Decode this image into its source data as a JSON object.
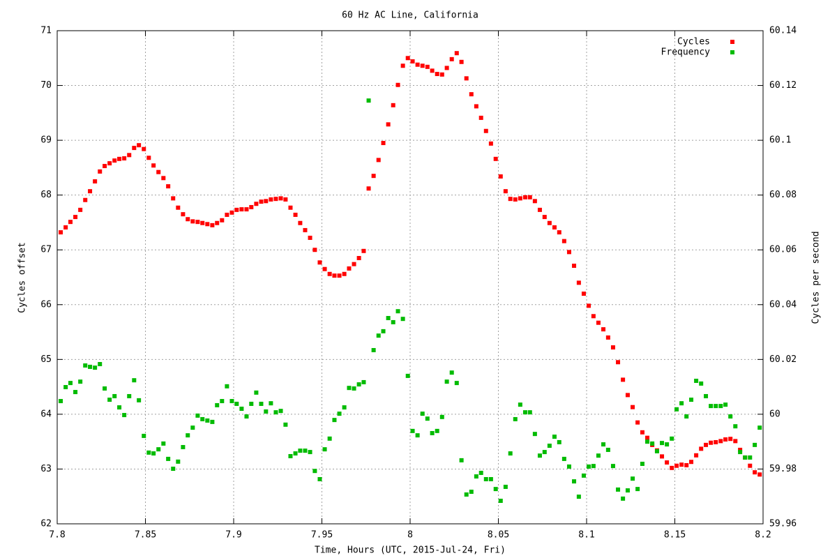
{
  "chart_data": {
    "type": "scatter",
    "title": "60 Hz AC Line, California",
    "x_label": "Time, Hours (UTC, 2015-Jul-24, Fri)",
    "y_label": "Cycles offset",
    "y2_label": "Cycles per second",
    "xlim": [
      7.8,
      8.2
    ],
    "xticks": [
      7.8,
      7.85,
      7.9,
      7.95,
      8,
      8.05,
      8.1,
      8.15,
      8.2
    ],
    "ylim": [
      62,
      71
    ],
    "yticks": [
      62,
      63,
      64,
      65,
      66,
      67,
      68,
      69,
      70,
      71
    ],
    "y2lim": [
      59.96,
      60.14
    ],
    "y2ticks": [
      59.96,
      59.98,
      60,
      60.02,
      60.04,
      60.06,
      60.08,
      60.1,
      60.12,
      60.14
    ],
    "grid": true,
    "legend": "top-right",
    "x": [
      7.802,
      7.8048,
      7.8075,
      7.8103,
      7.8131,
      7.8159,
      7.8186,
      7.8214,
      7.8242,
      7.8269,
      7.8297,
      7.8325,
      7.8352,
      7.838,
      7.8408,
      7.8436,
      7.8463,
      7.8491,
      7.8519,
      7.8546,
      7.8574,
      7.8602,
      7.8629,
      7.8657,
      7.8685,
      7.8713,
      7.874,
      7.8768,
      7.8796,
      7.8823,
      7.8851,
      7.8879,
      7.8906,
      7.8934,
      7.8962,
      7.899,
      7.9017,
      7.9045,
      7.9073,
      7.91,
      7.9128,
      7.9156,
      7.9183,
      7.9211,
      7.9239,
      7.9267,
      7.9294,
      7.9322,
      7.935,
      7.9377,
      7.9405,
      7.9433,
      7.946,
      7.9488,
      7.9516,
      7.9544,
      7.9571,
      7.9599,
      7.9627,
      7.9654,
      7.9682,
      7.971,
      7.9737,
      7.9765,
      7.9793,
      7.9821,
      7.9848,
      7.9876,
      7.9904,
      7.9931,
      7.9959,
      7.9987,
      8.0014,
      8.0042,
      8.007,
      8.0098,
      8.0125,
      8.0153,
      8.0181,
      8.0208,
      8.0236,
      8.0264,
      8.0291,
      8.0319,
      8.0347,
      8.0375,
      8.0402,
      8.043,
      8.0458,
      8.0485,
      8.0513,
      8.0541,
      8.0568,
      8.0596,
      8.0624,
      8.0652,
      8.0679,
      8.0707,
      8.0735,
      8.0762,
      8.079,
      8.0818,
      8.0845,
      8.0873,
      8.0901,
      8.0929,
      8.0956,
      8.0984,
      8.1012,
      8.1039,
      8.1067,
      8.1095,
      8.1122,
      8.115,
      8.1178,
      8.1206,
      8.1233,
      8.1261,
      8.1289,
      8.1316,
      8.1344,
      8.1372,
      8.1399,
      8.1427,
      8.1455,
      8.1483,
      8.151,
      8.1538,
      8.1566,
      8.1593,
      8.1621,
      8.1649,
      8.1676,
      8.1704,
      8.1732,
      8.176,
      8.1787,
      8.1815,
      8.1843,
      8.187,
      8.1898,
      8.1926,
      8.1953,
      8.1981
    ],
    "series": [
      {
        "name": "Cycles",
        "color": "#ff0000",
        "values": [
          67.32,
          67.41,
          67.51,
          67.6,
          67.73,
          67.91,
          68.07,
          68.25,
          68.43,
          68.53,
          68.58,
          68.63,
          68.66,
          68.67,
          68.73,
          68.86,
          68.91,
          68.84,
          68.68,
          68.54,
          68.42,
          68.31,
          68.16,
          67.94,
          67.77,
          67.65,
          67.56,
          67.52,
          67.51,
          67.49,
          67.47,
          67.45,
          67.49,
          67.54,
          67.64,
          67.68,
          67.73,
          67.74,
          67.74,
          67.78,
          67.84,
          67.88,
          67.89,
          67.92,
          67.93,
          67.94,
          67.92,
          67.77,
          67.64,
          67.49,
          67.36,
          67.22,
          67.0,
          66.77,
          66.65,
          66.56,
          66.53,
          66.53,
          66.56,
          66.66,
          66.74,
          66.85,
          66.98,
          68.12,
          68.35,
          68.64,
          68.95,
          69.29,
          69.64,
          70.01,
          70.36,
          70.5,
          70.44,
          70.38,
          70.36,
          70.34,
          70.27,
          70.21,
          70.2,
          70.32,
          70.48,
          70.59,
          70.43,
          70.13,
          69.84,
          69.62,
          69.41,
          69.17,
          68.94,
          68.66,
          68.34,
          68.07,
          67.93,
          67.92,
          67.94,
          67.96,
          67.96,
          67.89,
          67.73,
          67.6,
          67.49,
          67.41,
          67.32,
          67.16,
          66.96,
          66.71,
          66.4,
          66.2,
          65.98,
          65.79,
          65.67,
          65.55,
          65.4,
          65.22,
          64.95,
          64.63,
          64.35,
          64.13,
          63.85,
          63.67,
          63.57,
          63.44,
          63.34,
          63.23,
          63.12,
          63.02,
          63.06,
          63.08,
          63.07,
          63.13,
          63.25,
          63.37,
          63.44,
          63.48,
          63.49,
          63.51,
          63.54,
          63.55,
          63.51,
          63.35,
          63.21,
          63.06,
          62.94,
          62.9
        ]
      },
      {
        "name": "Frequency",
        "color": "#00bb00",
        "axis": "y2",
        "values": [
          60.0048,
          60.0099,
          60.0114,
          60.0081,
          60.0119,
          60.0178,
          60.0173,
          60.017,
          60.0183,
          60.0094,
          60.0053,
          60.0066,
          60.0025,
          59.9997,
          60.0066,
          60.0124,
          60.0051,
          59.9921,
          59.986,
          59.9857,
          59.9872,
          59.9893,
          59.9837,
          59.9801,
          59.9827,
          59.988,
          59.9923,
          59.9951,
          59.9995,
          59.9982,
          59.9977,
          59.9972,
          60.0033,
          60.0048,
          60.0102,
          60.0048,
          60.0038,
          60.002,
          59.9992,
          60.0038,
          60.0079,
          60.0038,
          60.001,
          60.004,
          60.0007,
          60.0012,
          59.9962,
          59.9847,
          59.9857,
          59.9867,
          59.9867,
          59.9862,
          59.9793,
          59.9763,
          59.9872,
          59.9911,
          59.9979,
          60.0002,
          60.0025,
          60.0096,
          60.0094,
          60.0109,
          60.0117,
          60.1145,
          60.0234,
          60.0287,
          60.0303,
          60.0351,
          60.0336,
          60.0376,
          60.0348,
          60.014,
          59.9939,
          59.9923,
          60.0002,
          59.9984,
          59.9931,
          59.9939,
          59.999,
          60.0119,
          60.0152,
          60.0114,
          59.9832,
          59.9707,
          59.9717,
          59.9773,
          59.9786,
          59.9763,
          59.9763,
          59.9727,
          59.9684,
          59.9735,
          59.9857,
          59.9982,
          60.0035,
          60.0007,
          60.0007,
          59.9928,
          59.9849,
          59.9862,
          59.9885,
          59.9918,
          59.9898,
          59.9837,
          59.9809,
          59.9755,
          59.9699,
          59.9776,
          59.9809,
          59.9811,
          59.9849,
          59.989,
          59.987,
          59.9811,
          59.9725,
          59.9692,
          59.9722,
          59.9765,
          59.9727,
          59.9819,
          59.99,
          59.9893,
          59.9865,
          59.9895,
          59.989,
          59.9911,
          60.0018,
          60.004,
          59.9992,
          60.0053,
          60.0122,
          60.0112,
          60.0066,
          60.003,
          60.003,
          60.003,
          60.0035,
          59.9992,
          59.9956,
          59.9862,
          59.9842,
          59.9842,
          59.9888,
          59.9951
        ]
      }
    ]
  }
}
